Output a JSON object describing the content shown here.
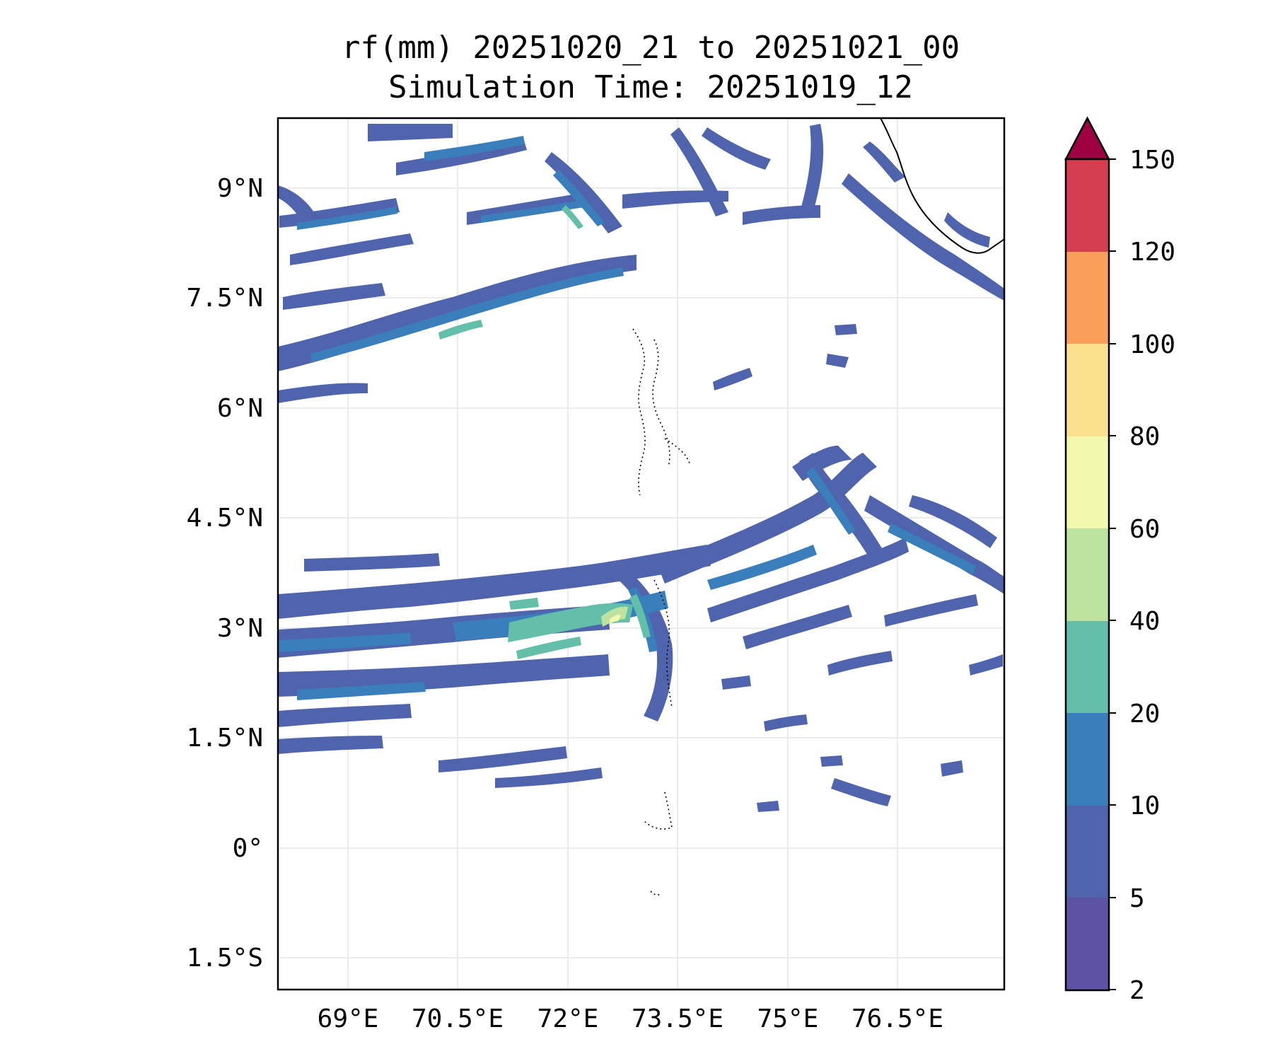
{
  "title": {
    "line1": "rf(mm) 20251020_21 to 20251021_00",
    "line2": "Simulation Time: 20251019_12"
  },
  "axes": {
    "lon_labels": [
      "69°E",
      "70.5°E",
      "72°E",
      "73.5°E",
      "75°E",
      "76.5°E"
    ],
    "lat_labels": [
      "9°N",
      "7.5°N",
      "6°N",
      "4.5°N",
      "3°N",
      "1.5°N",
      "0°",
      "1.5°S"
    ]
  },
  "colorbar": {
    "levels": [
      "2",
      "5",
      "10",
      "20",
      "40",
      "60",
      "80",
      "100",
      "120",
      "150"
    ],
    "colors": [
      "#5c53a5",
      "#4f64ad",
      "#3a7fbb",
      "#63bfaa",
      "#bde3a1",
      "#f2f9ae",
      "#fbe08e",
      "#f99f59",
      "#d53e4f",
      "#9e0142"
    ],
    "extend": "max"
  },
  "map": {
    "variable": "rainfall",
    "unit": "mm"
  }
}
